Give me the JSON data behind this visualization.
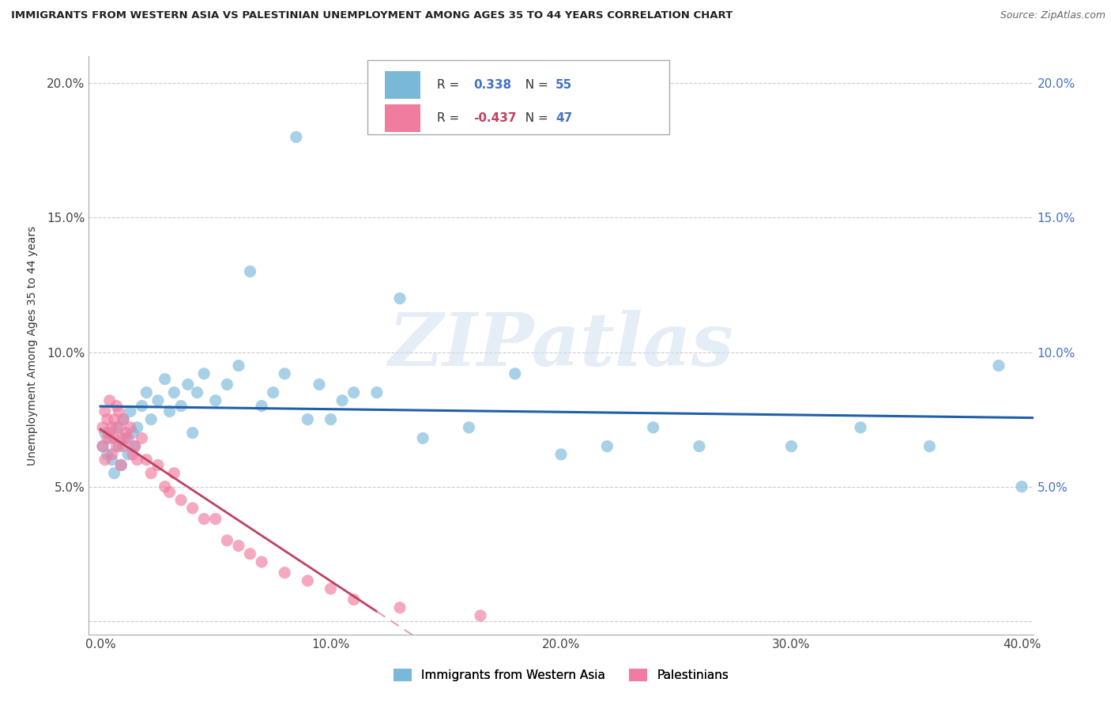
{
  "title": "IMMIGRANTS FROM WESTERN ASIA VS PALESTINIAN UNEMPLOYMENT AMONG AGES 35 TO 44 YEARS CORRELATION CHART",
  "source": "Source: ZipAtlas.com",
  "ylabel": "Unemployment Among Ages 35 to 44 years",
  "xlim": [
    -0.005,
    0.405
  ],
  "ylim": [
    -0.005,
    0.21
  ],
  "xticks": [
    0.0,
    0.1,
    0.2,
    0.3,
    0.4
  ],
  "xticklabels": [
    "0.0%",
    "10.0%",
    "20.0%",
    "30.0%",
    "40.0%"
  ],
  "yticks": [
    0.0,
    0.05,
    0.1,
    0.15,
    0.2
  ],
  "yticklabels_left": [
    "",
    "5.0%",
    "10.0%",
    "15.0%",
    "20.0%"
  ],
  "yticklabels_right": [
    "",
    "5.0%",
    "10.0%",
    "15.0%",
    "20.0%"
  ],
  "blue_R": 0.338,
  "blue_N": 55,
  "pink_R": -0.437,
  "pink_N": 47,
  "blue_color": "#7ab8d9",
  "pink_color": "#f07ca0",
  "blue_line_color": "#2060a8",
  "pink_line_solid_color": "#c04060",
  "pink_line_dash_color": "#e0a0b8",
  "watermark": "ZIPatlas",
  "legend_label_blue": "Immigrants from Western Asia",
  "legend_label_pink": "Palestinians",
  "blue_scatter_x": [
    0.001,
    0.002,
    0.003,
    0.004,
    0.005,
    0.006,
    0.007,
    0.008,
    0.009,
    0.01,
    0.011,
    0.012,
    0.013,
    0.014,
    0.015,
    0.016,
    0.018,
    0.02,
    0.022,
    0.025,
    0.028,
    0.03,
    0.032,
    0.035,
    0.038,
    0.04,
    0.042,
    0.045,
    0.05,
    0.055,
    0.06,
    0.065,
    0.07,
    0.075,
    0.08,
    0.085,
    0.09,
    0.095,
    0.1,
    0.105,
    0.11,
    0.12,
    0.13,
    0.14,
    0.16,
    0.18,
    0.2,
    0.22,
    0.24,
    0.26,
    0.3,
    0.33,
    0.36,
    0.39,
    0.4
  ],
  "blue_scatter_y": [
    0.065,
    0.07,
    0.062,
    0.068,
    0.06,
    0.055,
    0.072,
    0.065,
    0.058,
    0.075,
    0.068,
    0.062,
    0.078,
    0.07,
    0.065,
    0.072,
    0.08,
    0.085,
    0.075,
    0.082,
    0.09,
    0.078,
    0.085,
    0.08,
    0.088,
    0.07,
    0.085,
    0.092,
    0.082,
    0.088,
    0.095,
    0.13,
    0.08,
    0.085,
    0.092,
    0.18,
    0.075,
    0.088,
    0.075,
    0.082,
    0.085,
    0.085,
    0.12,
    0.068,
    0.072,
    0.092,
    0.062,
    0.065,
    0.072,
    0.065,
    0.065,
    0.072,
    0.065,
    0.095,
    0.05
  ],
  "pink_scatter_x": [
    0.001,
    0.001,
    0.002,
    0.002,
    0.003,
    0.003,
    0.004,
    0.004,
    0.005,
    0.005,
    0.006,
    0.006,
    0.007,
    0.007,
    0.008,
    0.008,
    0.009,
    0.009,
    0.01,
    0.01,
    0.011,
    0.012,
    0.013,
    0.014,
    0.015,
    0.016,
    0.018,
    0.02,
    0.022,
    0.025,
    0.028,
    0.03,
    0.032,
    0.035,
    0.04,
    0.045,
    0.05,
    0.055,
    0.06,
    0.065,
    0.07,
    0.08,
    0.09,
    0.1,
    0.11,
    0.13,
    0.165
  ],
  "pink_scatter_y": [
    0.072,
    0.065,
    0.078,
    0.06,
    0.068,
    0.075,
    0.07,
    0.082,
    0.062,
    0.072,
    0.068,
    0.075,
    0.065,
    0.08,
    0.072,
    0.078,
    0.058,
    0.068,
    0.065,
    0.075,
    0.07,
    0.068,
    0.072,
    0.062,
    0.065,
    0.06,
    0.068,
    0.06,
    0.055,
    0.058,
    0.05,
    0.048,
    0.055,
    0.045,
    0.042,
    0.038,
    0.038,
    0.03,
    0.028,
    0.025,
    0.022,
    0.018,
    0.015,
    0.012,
    0.008,
    0.005,
    0.002
  ],
  "background_color": "#ffffff",
  "grid_color": "#cccccc"
}
